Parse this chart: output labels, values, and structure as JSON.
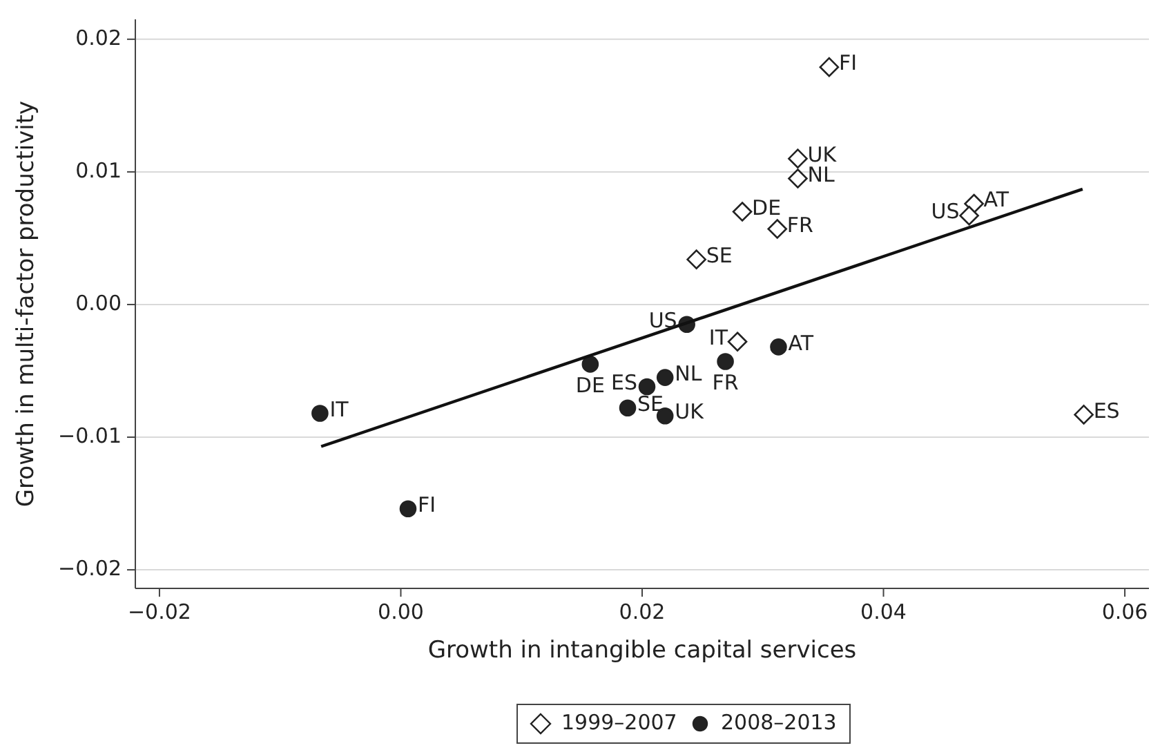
{
  "chart_data": {
    "type": "scatter",
    "xlabel": "Growth in intangible capital services",
    "ylabel": "Growth in multi-factor productivity",
    "xlim": [
      -0.022,
      0.062
    ],
    "ylim": [
      -0.0214,
      0.0215
    ],
    "xticks": [
      {
        "value": -0.02,
        "label": "−0.02"
      },
      {
        "value": 0,
        "label": "0.00"
      },
      {
        "value": 0.02,
        "label": "0.02"
      },
      {
        "value": 0.04,
        "label": "0.04"
      },
      {
        "value": 0.06,
        "label": "0.06"
      }
    ],
    "yticks": [
      {
        "value": -0.02,
        "label": "−0.02"
      },
      {
        "value": -0.01,
        "label": "−0.01"
      },
      {
        "value": 0,
        "label": "0.00"
      },
      {
        "value": 0.01,
        "label": "0.01"
      },
      {
        "value": 0.02,
        "label": "0.02"
      }
    ],
    "grid": "y",
    "legend": "bottom",
    "series": [
      {
        "name": "1999–2007",
        "color": "#222222",
        "marker": "diamond",
        "x": [
          0.0355,
          0.0329,
          0.0329,
          0.0283,
          0.0312,
          0.0245,
          0.0279,
          0.0475,
          0.0471,
          0.0566
        ],
        "values": [
          0.0179,
          0.011,
          0.0095,
          0.007,
          0.0057,
          0.0034,
          -0.0028,
          0.0076,
          0.0067,
          -0.0083
        ],
        "value_labels": [
          "FI",
          "UK",
          "NL",
          "DE",
          "FR",
          "SE",
          "IT",
          "AT",
          "US",
          "ES"
        ]
      },
      {
        "name": "2008–2013",
        "color": "#222222",
        "marker": "circle",
        "x": [
          -0.0067,
          0.0006,
          0.0157,
          0.0204,
          0.0219,
          0.0188,
          0.0219,
          0.0237,
          0.0269,
          0.0313
        ],
        "values": [
          -0.0082,
          -0.0154,
          -0.0045,
          -0.0062,
          -0.0055,
          -0.0078,
          -0.0084,
          -0.0015,
          -0.0043,
          -0.0032
        ],
        "value_labels": [
          "IT",
          "FI",
          "DE",
          "ES",
          "NL",
          "SE",
          "UK",
          "US",
          "FR",
          "AT"
        ]
      },
      {
        "type": "line",
        "color": "#111111",
        "marker": "none",
        "x": [
          -0.0066,
          0.0565
        ],
        "values": [
          -0.0107,
          0.0087
        ]
      }
    ]
  }
}
